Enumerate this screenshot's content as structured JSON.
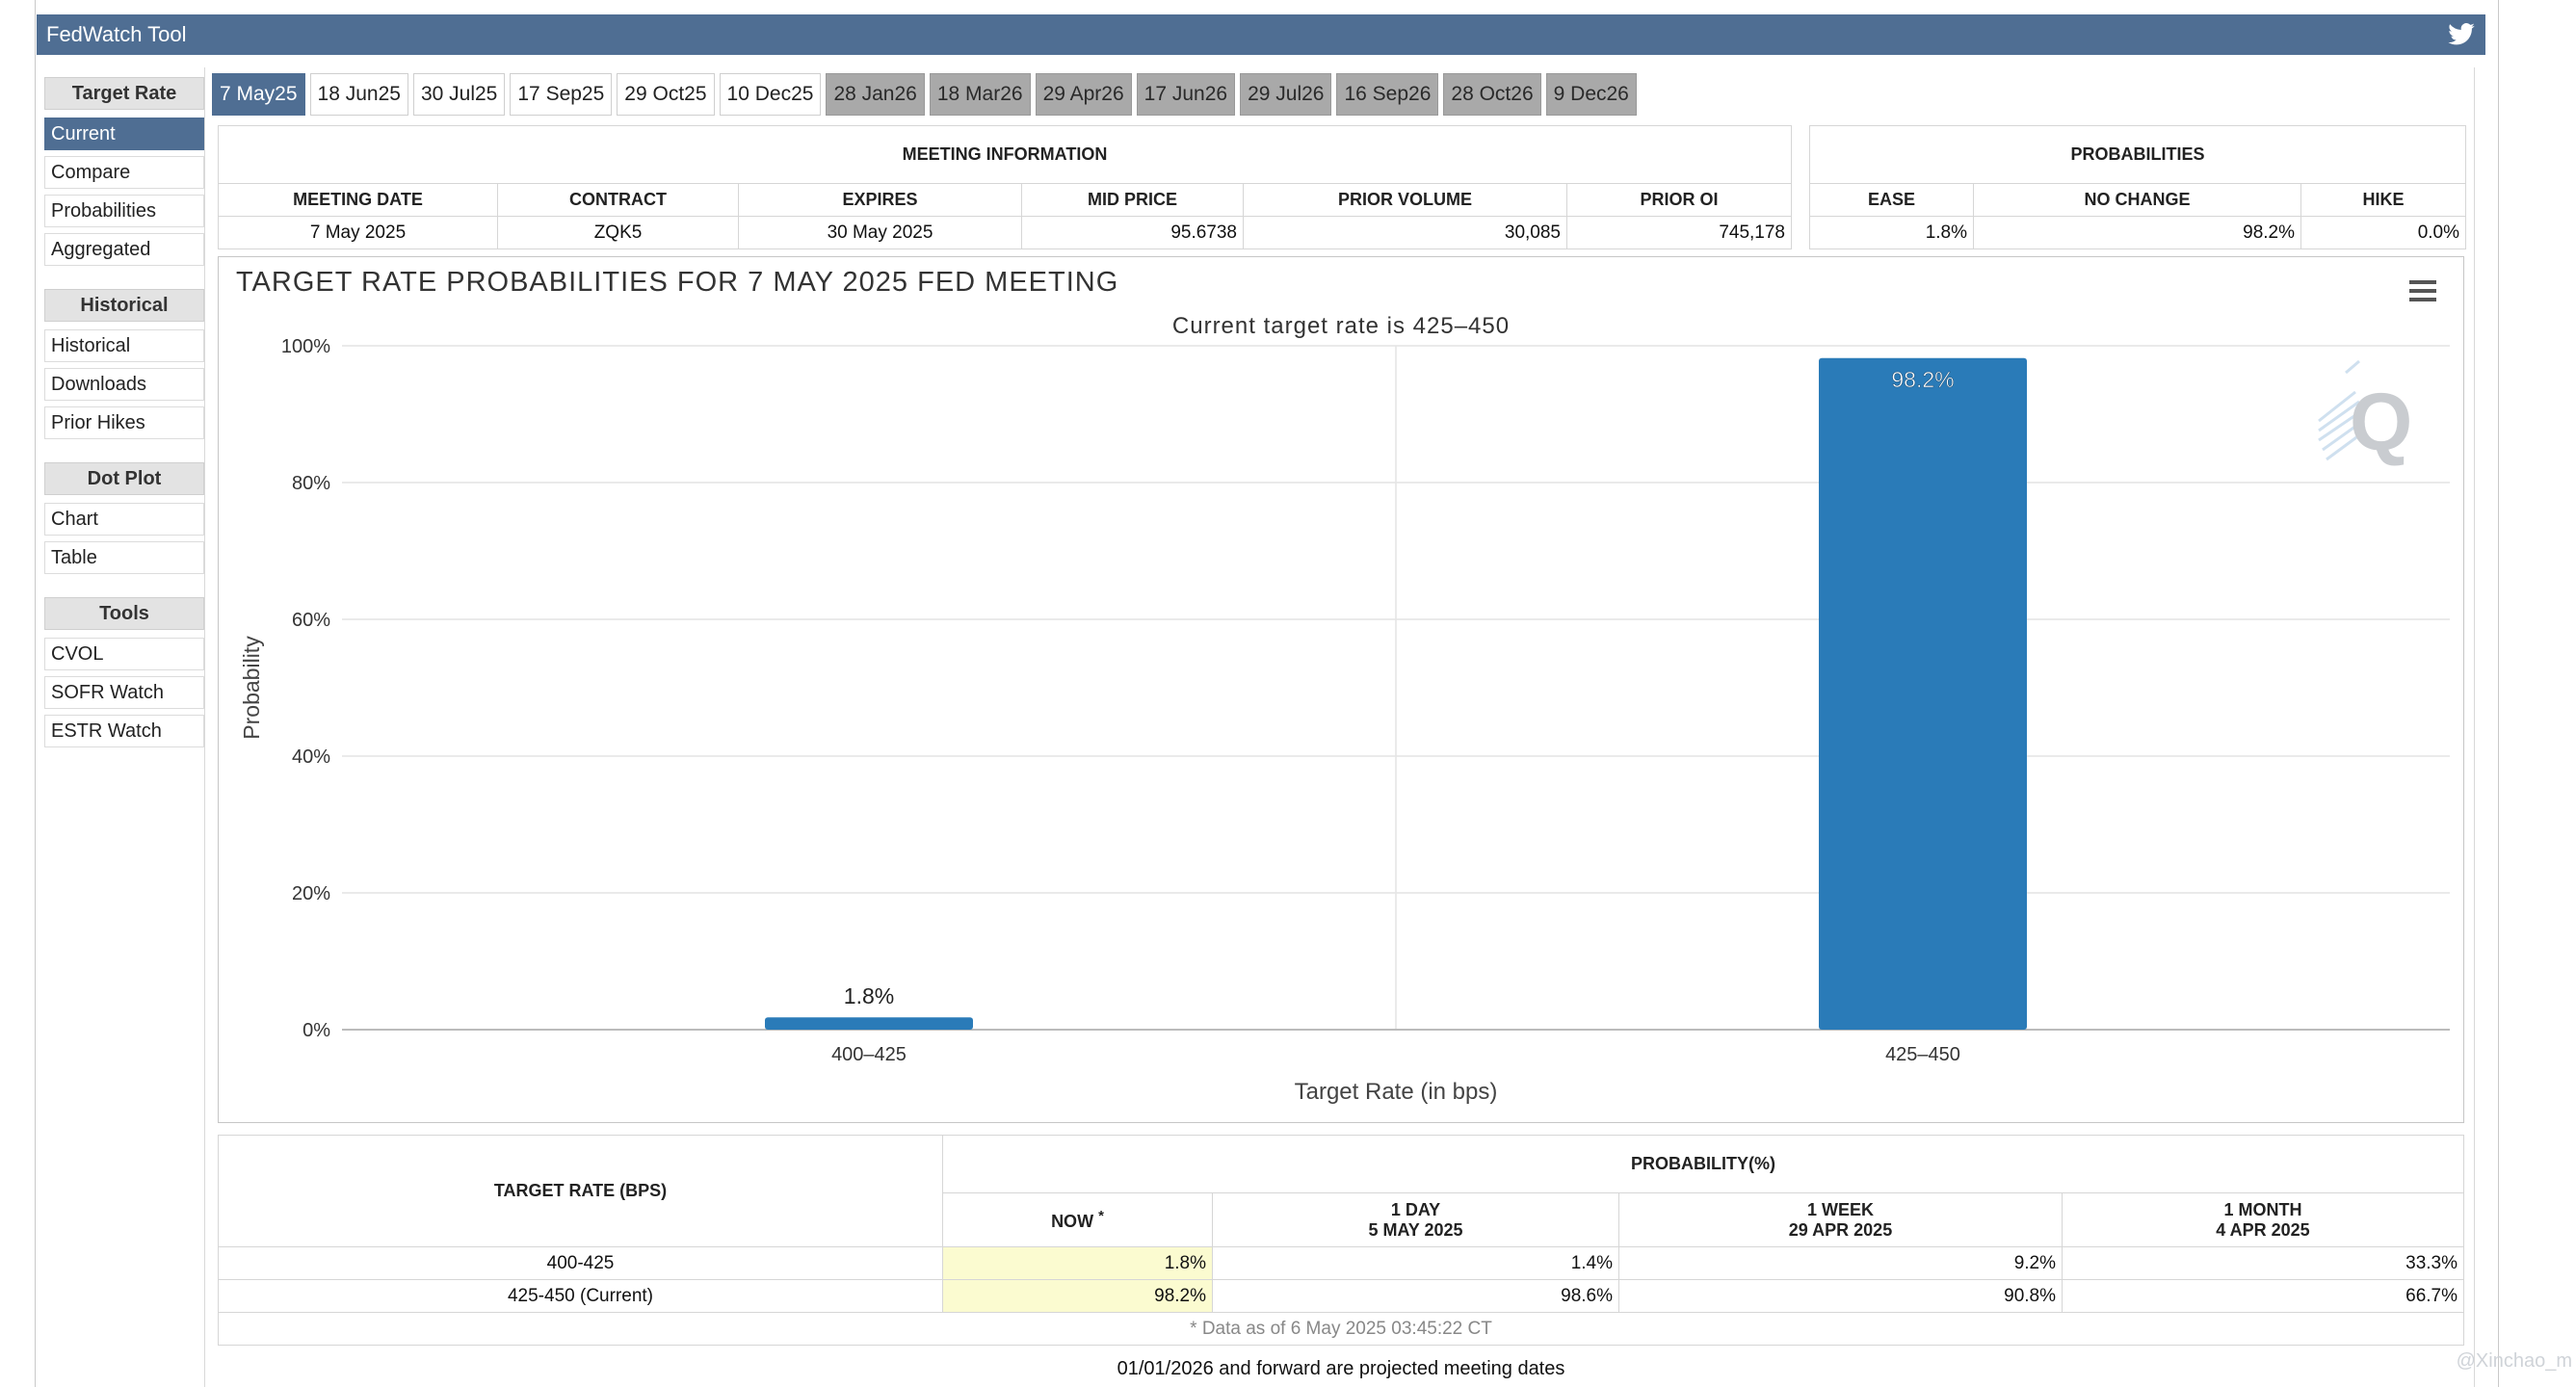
{
  "app": {
    "title": "FedWatch Tool"
  },
  "sidebar": {
    "sections": [
      {
        "title": "Target Rate",
        "items": [
          {
            "label": "Current",
            "active": true
          },
          {
            "label": "Compare"
          },
          {
            "label": "Probabilities"
          },
          {
            "label": "Aggregated"
          }
        ]
      },
      {
        "title": "Historical",
        "items": [
          {
            "label": "Historical"
          },
          {
            "label": "Downloads"
          },
          {
            "label": "Prior Hikes"
          }
        ]
      },
      {
        "title": "Dot Plot",
        "items": [
          {
            "label": "Chart"
          },
          {
            "label": "Table"
          }
        ]
      },
      {
        "title": "Tools",
        "items": [
          {
            "label": "CVOL"
          },
          {
            "label": "SOFR Watch"
          },
          {
            "label": "ESTR Watch"
          }
        ]
      }
    ]
  },
  "tabs": [
    {
      "label": "7 May25",
      "state": "active"
    },
    {
      "label": "18 Jun25",
      "state": "normal"
    },
    {
      "label": "30 Jul25",
      "state": "normal"
    },
    {
      "label": "17 Sep25",
      "state": "normal"
    },
    {
      "label": "29 Oct25",
      "state": "normal"
    },
    {
      "label": "10 Dec25",
      "state": "normal"
    },
    {
      "label": "28 Jan26",
      "state": "future"
    },
    {
      "label": "18 Mar26",
      "state": "future"
    },
    {
      "label": "29 Apr26",
      "state": "future"
    },
    {
      "label": "17 Jun26",
      "state": "future"
    },
    {
      "label": "29 Jul26",
      "state": "future"
    },
    {
      "label": "16 Sep26",
      "state": "future"
    },
    {
      "label": "28 Oct26",
      "state": "future"
    },
    {
      "label": "9 Dec26",
      "state": "future"
    }
  ],
  "meeting_info": {
    "title": "MEETING INFORMATION",
    "headers": [
      "MEETING DATE",
      "CONTRACT",
      "EXPIRES",
      "MID PRICE",
      "PRIOR VOLUME",
      "PRIOR OI"
    ],
    "values": [
      "7 May 2025",
      "ZQK5",
      "30 May 2025",
      "95.6738",
      "30,085",
      "745,178"
    ]
  },
  "probabilities": {
    "title": "PROBABILITIES",
    "headers": [
      "EASE",
      "NO CHANGE",
      "HIKE"
    ],
    "values": [
      "1.8%",
      "98.2%",
      "0.0%"
    ]
  },
  "chart": {
    "title": "TARGET RATE PROBABILITIES FOR 7 MAY 2025 FED MEETING",
    "subtitle": "Current target rate is 425–450"
  },
  "chart_data": {
    "type": "bar",
    "title": "TARGET RATE PROBABILITIES FOR 7 MAY 2025 FED MEETING",
    "subtitle": "Current target rate is 425–450",
    "categories": [
      "400–425",
      "425–450"
    ],
    "values": [
      1.8,
      98.2
    ],
    "data_labels": [
      "1.8%",
      "98.2%"
    ],
    "xlabel": "Target Rate (in bps)",
    "ylabel": "Probability",
    "ylim": [
      0,
      100
    ],
    "yticks": [
      "0%",
      "20%",
      "40%",
      "60%",
      "80%",
      "100%"
    ],
    "bar_color": "#2a7bb8",
    "grid": true,
    "legend": "none"
  },
  "bottom_table": {
    "col_target": "TARGET RATE (BPS)",
    "col_prob": "PROBABILITY(%)",
    "sub_headers": [
      {
        "line1": "NOW",
        "star": "*"
      },
      {
        "line1": "1 DAY",
        "line2": "5 MAY 2025"
      },
      {
        "line1": "1 WEEK",
        "line2": "29 APR 2025"
      },
      {
        "line1": "1 MONTH",
        "line2": "4 APR 2025"
      }
    ],
    "rows": [
      {
        "rate": "400-425",
        "now": "1.8%",
        "day": "1.4%",
        "week": "9.2%",
        "month": "33.3%"
      },
      {
        "rate": "425-450 (Current)",
        "now": "98.2%",
        "day": "98.6%",
        "week": "90.8%",
        "month": "66.7%"
      }
    ],
    "footnote": "* Data as of 6 May 2025 03:45:22 CT"
  },
  "note": "01/01/2026 and forward are projected meeting dates",
  "credit": "@Xinchao_m",
  "colors": {
    "header_blue": "#4f6e93",
    "bar_blue": "#2a7bb8",
    "future_tab": "#a9a9a9",
    "now_highlight": "#fbfbd0"
  }
}
